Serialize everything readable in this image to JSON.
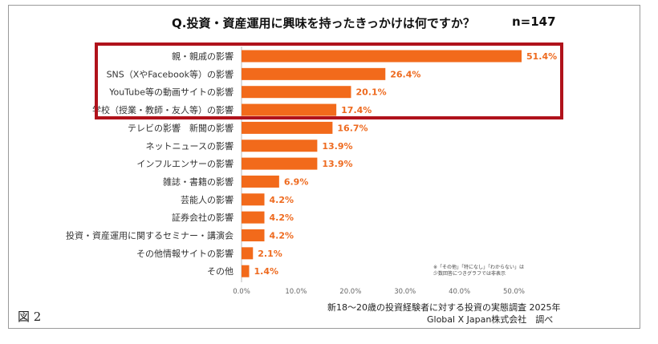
{
  "chart_data": {
    "type": "bar",
    "orientation": "horizontal",
    "title": "Q.投資・資産運用に興味を持ったきっかけは何ですか？",
    "sample_size": "n=147",
    "categories": [
      "親・親戚の影響",
      "SNS（XやFacebook等）の影響",
      "YouTube等の動画サイトの影響",
      "学校（授業・教師・友人等）の影響",
      "テレビの影響　新聞の影響",
      "ネットニュースの影響",
      "インフルエンサーの影響",
      "雑誌・書籍の影響",
      "芸能人の影響",
      "証券会社の影響",
      "投資・資産運用に関するセミナー・講演会",
      "その他情報サイトの影響",
      "その他"
    ],
    "values": [
      51.4,
      26.4,
      20.1,
      17.4,
      16.7,
      13.9,
      13.9,
      6.9,
      4.2,
      4.2,
      4.2,
      2.1,
      1.4
    ],
    "value_labels": [
      "51.4%",
      "26.4%",
      "20.1%",
      "17.4%",
      "16.7%",
      "13.9%",
      "13.9%",
      "6.9%",
      "4.2%",
      "4.2%",
      "4.2%",
      "2.1%",
      "1.4%"
    ],
    "xticks": [
      "0.0%",
      "10.0%",
      "20.0%",
      "30.0%",
      "40.0%",
      "50.0%"
    ],
    "xlim": [
      0,
      55
    ],
    "highlighted_rows": [
      0,
      1,
      2,
      3
    ],
    "bar_color": "#f26a1b",
    "label_color": "#ee6a1f",
    "highlight_color": "#b0121b"
  },
  "note": {
    "line1": "※「その他」「特になし」「わからない」は",
    "line2": "少数回答につきグラフでは非表示"
  },
  "source": {
    "line1": "新18〜20歳の投資経験者に対する投資の実態調査 2025年",
    "line2": "Global X Japan株式会社　調べ"
  },
  "figure_label": "図 2"
}
